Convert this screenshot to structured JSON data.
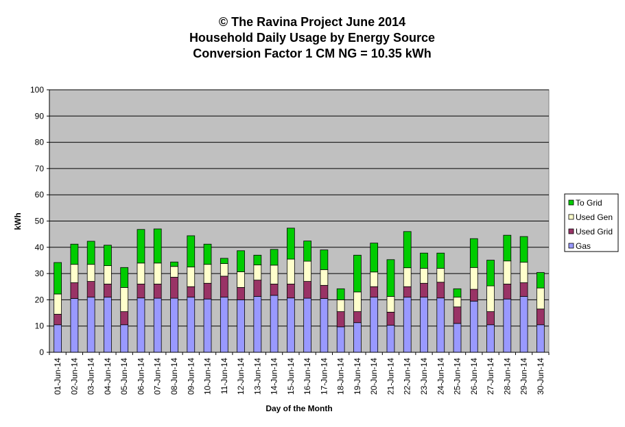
{
  "chart_data": {
    "type": "bar",
    "stacked": true,
    "title": [
      "© The Ravina Project June 2014",
      "Household Daily Usage by Energy Source",
      "Conversion Factor 1 CM NG = 10.35 kWh"
    ],
    "xlabel": "Day of the Month",
    "ylabel": "kWh",
    "ylim": [
      0,
      100
    ],
    "yticks": [
      0,
      10,
      20,
      30,
      40,
      50,
      60,
      70,
      80,
      90,
      100
    ],
    "grid": true,
    "legend_position": "right",
    "categories": [
      "01-Jun-14",
      "02-Jun-14",
      "03-Jun-14",
      "04-Jun-14",
      "05-Jun-14",
      "06-Jun-14",
      "07-Jun-14",
      "08-Jun-14",
      "09-Jun-14",
      "10-Jun-14",
      "11-Jun-14",
      "12-Jun-14",
      "13-Jun-14",
      "14-Jun-14",
      "15-Jun-14",
      "16-Jun-14",
      "17-Jun-14",
      "18-Jun-14",
      "19-Jun-14",
      "20-Jun-14",
      "21-Jun-14",
      "22-Jun-14",
      "23-Jun-14",
      "24-Jun-14",
      "25-Jun-14",
      "26-Jun-14",
      "27-Jun-14",
      "28-Jun-14",
      "29-Jun-14",
      "30-Jun-14"
    ],
    "series": [
      {
        "name": "Gas",
        "color": "#9999ff",
        "values": [
          10.5,
          20.5,
          21,
          21,
          10.5,
          20.7,
          20.6,
          20.6,
          21,
          20.3,
          21,
          20,
          21.3,
          21.7,
          20.7,
          20.6,
          20.5,
          9.7,
          11.3,
          21,
          10.3,
          21,
          21,
          20.7,
          11,
          19.5,
          10.5,
          20.3,
          21.3,
          10.5
        ]
      },
      {
        "name": "Used Grid",
        "color": "#993366",
        "values": [
          4,
          6,
          6,
          5,
          5,
          5.3,
          5.4,
          8,
          4,
          6,
          8,
          4.7,
          6.2,
          4.3,
          5.3,
          6.4,
          5,
          5.8,
          4.2,
          4,
          5,
          4,
          5.3,
          6,
          6.3,
          4.5,
          5,
          5.7,
          5.2,
          6
        ]
      },
      {
        "name": "Used Gen",
        "color": "#ffffcc",
        "values": [
          7.7,
          7,
          6.5,
          7,
          9.2,
          8,
          8,
          4.1,
          7.5,
          7.2,
          4.8,
          6,
          5.8,
          7.2,
          9.5,
          7.7,
          6,
          4.5,
          7.5,
          5.6,
          6,
          7.2,
          5.7,
          5.3,
          3.7,
          8.3,
          9.8,
          8.8,
          7.8,
          8
        ]
      },
      {
        "name": "To Grid",
        "color": "#00cc00",
        "values": [
          12,
          7.7,
          8.8,
          7.8,
          7.6,
          12.8,
          13,
          1.7,
          11.9,
          7.7,
          2,
          8,
          3.7,
          6,
          11.8,
          7.7,
          7.5,
          4.2,
          14,
          11,
          14,
          13.8,
          5.8,
          5.8,
          3.2,
          11,
          9.8,
          9.8,
          9.8,
          5.9
        ]
      }
    ],
    "legend_order": [
      "To Grid",
      "Used Gen",
      "Used Grid",
      "Gas"
    ],
    "colors": {
      "plot_background": "#c0c0c0",
      "gridline": "#000000",
      "bar_outline": "#000000"
    }
  }
}
